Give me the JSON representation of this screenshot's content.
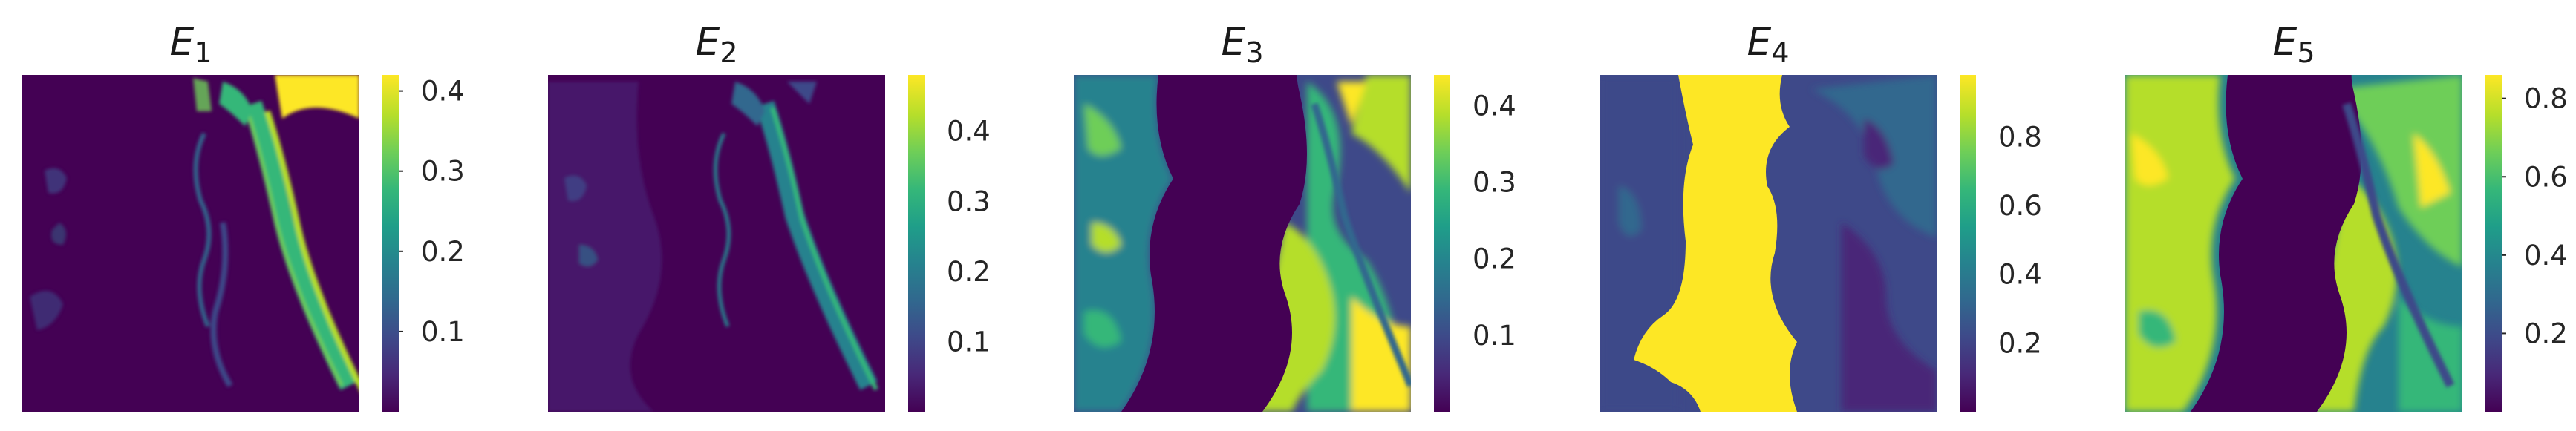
{
  "colormap": {
    "name": "viridis",
    "stops": [
      "#440154",
      "#482878",
      "#3e4989",
      "#31688e",
      "#26828e",
      "#1f9e89",
      "#35b779",
      "#6ece58",
      "#b5de2b",
      "#fde725"
    ]
  },
  "panels": [
    {
      "id": "E1",
      "title_base": "E",
      "title_sub": "1",
      "colorbar_ticks": [
        "0.1",
        "0.2",
        "0.3",
        "0.4"
      ],
      "vmin": 0.0,
      "vmax": 0.42,
      "tick_values": [
        0.1,
        0.2,
        0.3,
        0.4
      ],
      "tick_marks": true
    },
    {
      "id": "E2",
      "title_base": "E",
      "title_sub": "2",
      "colorbar_ticks": [
        "0.1",
        "0.2",
        "0.3",
        "0.4"
      ],
      "vmin": 0.0,
      "vmax": 0.48,
      "tick_values": [
        0.1,
        0.2,
        0.3,
        0.4
      ],
      "tick_marks": false
    },
    {
      "id": "E3",
      "title_base": "E",
      "title_sub": "3",
      "colorbar_ticks": [
        "0.1",
        "0.2",
        "0.3",
        "0.4"
      ],
      "vmin": 0.0,
      "vmax": 0.44,
      "tick_values": [
        0.1,
        0.2,
        0.3,
        0.4
      ],
      "tick_marks": false
    },
    {
      "id": "E4",
      "title_base": "E",
      "title_sub": "4",
      "colorbar_ticks": [
        "0.2",
        "0.4",
        "0.6",
        "0.8"
      ],
      "vmin": 0.0,
      "vmax": 0.98,
      "tick_values": [
        0.2,
        0.4,
        0.6,
        0.8
      ],
      "tick_marks": false
    },
    {
      "id": "E5",
      "title_base": "E",
      "title_sub": "5",
      "colorbar_ticks": [
        "0.2",
        "0.4",
        "0.6",
        "0.8"
      ],
      "vmin": 0.0,
      "vmax": 0.86,
      "tick_values": [
        0.2,
        0.4,
        0.6,
        0.8
      ],
      "tick_marks": true
    }
  ]
}
